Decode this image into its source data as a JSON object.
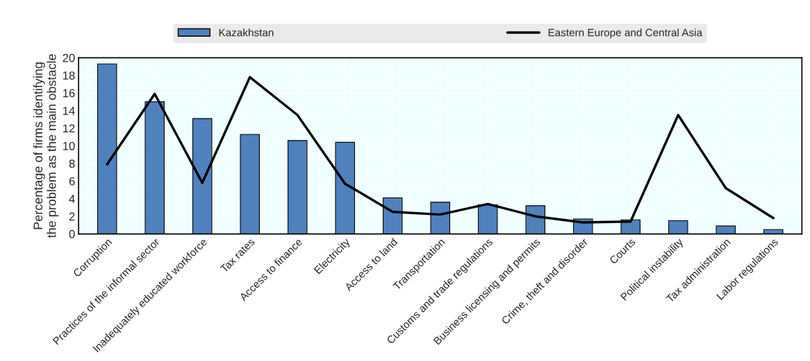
{
  "chart_data": {
    "type": "bar",
    "categories": [
      "Corruption",
      "Practices of the informal sector",
      "Inadequately educated workforce",
      "Tax rates",
      "Access to finance",
      "Electricity",
      "Access to land",
      "Transportation",
      "Customs and trade regulations",
      "Business licensing and permits",
      "Crime, theft and disorder",
      "Courts",
      "Political instability",
      "Tax administration",
      "Labor regulations"
    ],
    "ylabel": "Percentage of firms identifying\nthe problem as the main obstacle",
    "series": [
      {
        "name": "Kazakhstan",
        "color": "#4f81bd",
        "values": [
          19.3,
          15.0,
          13.1,
          11.3,
          10.6,
          10.4,
          4.1,
          3.6,
          3.3,
          3.2,
          1.7,
          1.6,
          1.5,
          0.9,
          0.5
        ]
      },
      {
        "name": "Eastern Europe and Central Asia",
        "type": "line",
        "color": "#000000",
        "values": [
          7.9,
          15.9,
          5.8,
          17.8,
          13.5,
          5.7,
          2.5,
          2.2,
          3.4,
          2.0,
          1.3,
          1.4,
          13.5,
          5.2,
          1.8
        ]
      }
    ],
    "ylim": [
      0,
      20
    ],
    "yticks": [
      0,
      2,
      4,
      6,
      8,
      10,
      12,
      14,
      16,
      18,
      20
    ],
    "grid": true,
    "legend": "top",
    "line_style": "solid",
    "marker": "none"
  }
}
